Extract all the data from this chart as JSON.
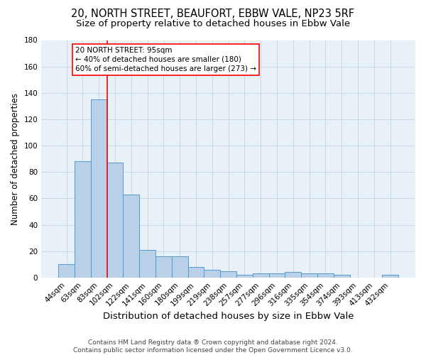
{
  "title1": "20, NORTH STREET, BEAUFORT, EBBW VALE, NP23 5RF",
  "title2": "Size of property relative to detached houses in Ebbw Vale",
  "xlabel": "Distribution of detached houses by size in Ebbw Vale",
  "ylabel": "Number of detached properties",
  "categories": [
    "44sqm",
    "63sqm",
    "83sqm",
    "102sqm",
    "122sqm",
    "141sqm",
    "160sqm",
    "180sqm",
    "199sqm",
    "219sqm",
    "238sqm",
    "257sqm",
    "277sqm",
    "296sqm",
    "316sqm",
    "335sqm",
    "354sqm",
    "374sqm",
    "393sqm",
    "413sqm",
    "432sqm"
  ],
  "values": [
    10,
    88,
    135,
    87,
    63,
    21,
    16,
    16,
    8,
    6,
    5,
    2,
    3,
    3,
    4,
    3,
    3,
    2,
    0,
    0,
    2
  ],
  "bar_color": "#b8d0e8",
  "bar_edge_color": "#5599cc",
  "grid_color": "#c8d8e8",
  "bg_color": "#e8f0f8",
  "red_line_index": 2.5,
  "annotation_text": "20 NORTH STREET: 95sqm\n← 40% of detached houses are smaller (180)\n60% of semi-detached houses are larger (273) →",
  "annotation_box_color": "white",
  "annotation_box_edge": "red",
  "footer": "Contains HM Land Registry data ® Crown copyright and database right 2024.\nContains public sector information licensed under the Open Government Licence v3.0.",
  "ylim": [
    0,
    180
  ],
  "yticks": [
    0,
    20,
    40,
    60,
    80,
    100,
    120,
    140,
    160,
    180
  ],
  "title1_fontsize": 10.5,
  "title2_fontsize": 9.5,
  "xlabel_fontsize": 9.5,
  "ylabel_fontsize": 8.5,
  "tick_fontsize": 7.5,
  "footer_fontsize": 6.5,
  "annot_fontsize": 7.5
}
